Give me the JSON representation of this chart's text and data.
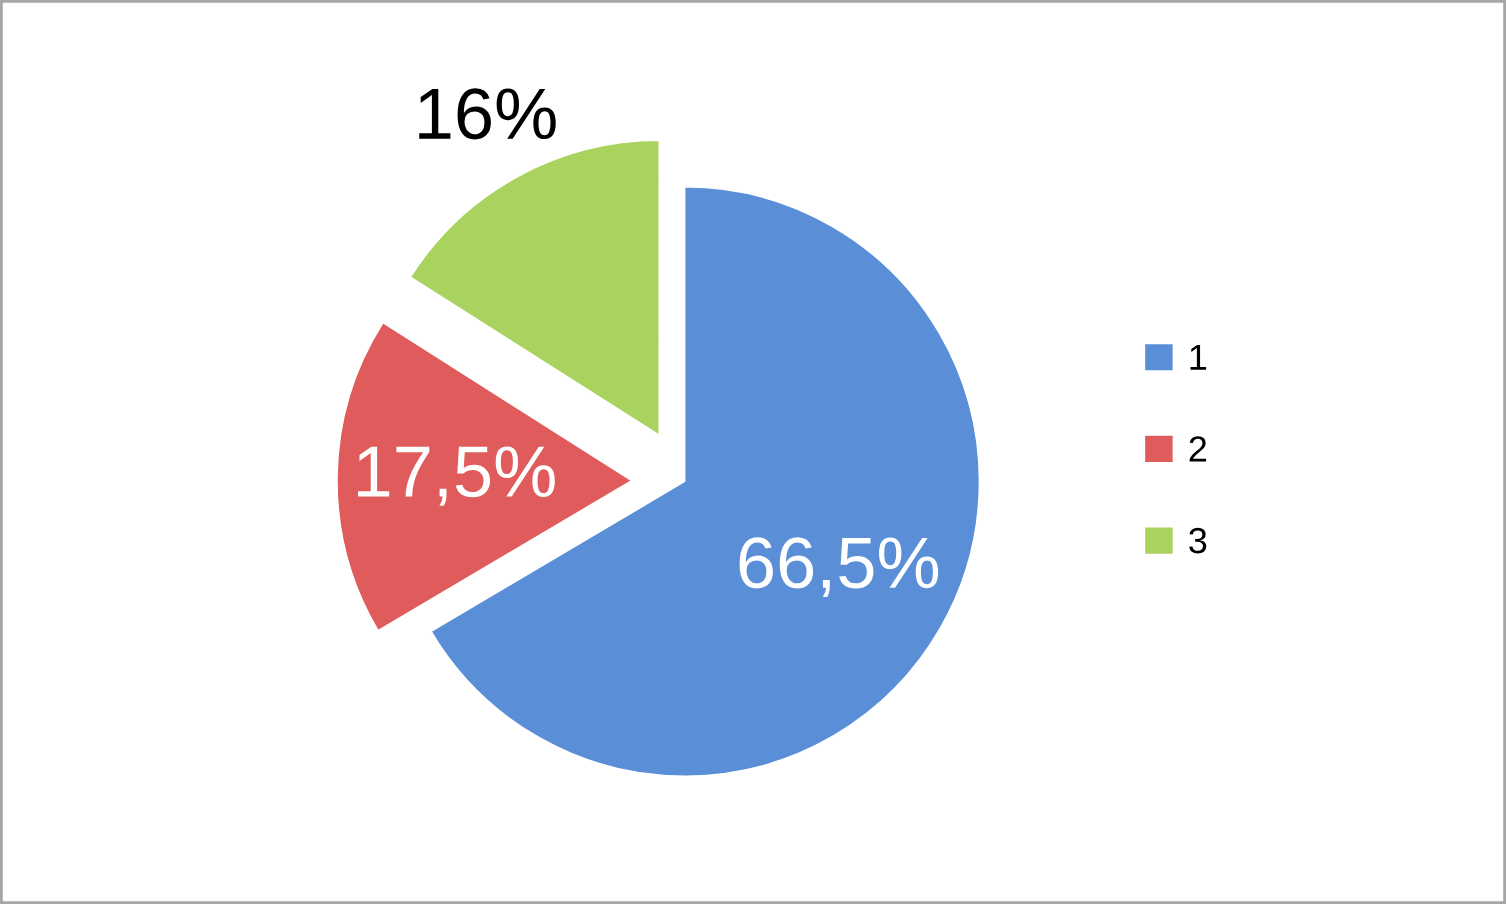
{
  "chart_data": {
    "type": "pie",
    "categories": [
      "1",
      "2",
      "3"
    ],
    "values": [
      66.5,
      17.5,
      16
    ],
    "colors": [
      "#5a8fd8",
      "#e05c5c",
      "#a9d25e"
    ],
    "value_labels": [
      "66,5%",
      "17,5%",
      "16%"
    ],
    "legend": "right"
  }
}
